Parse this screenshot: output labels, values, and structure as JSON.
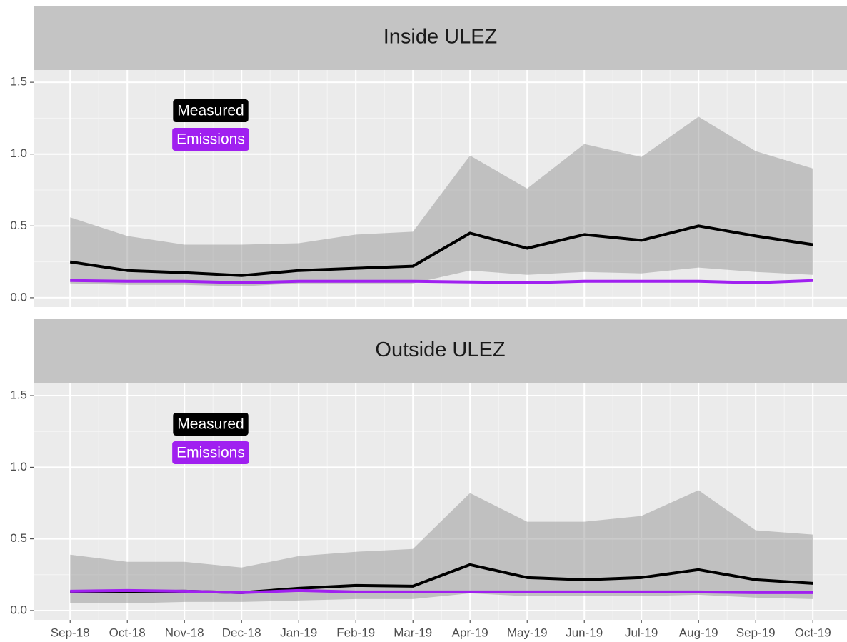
{
  "chart_data": [
    {
      "type": "line",
      "title": "Inside ULEZ",
      "ylim": [
        -0.065,
        1.585
      ],
      "yticks": [
        {
          "value": 0,
          "label": "0.0"
        },
        {
          "value": 0.5,
          "label": "0.5"
        },
        {
          "value": 1,
          "label": "1.0"
        },
        {
          "value": 1.5,
          "label": "1.5"
        }
      ],
      "grid": true,
      "series": [
        {
          "name": "Measured",
          "color": "#000000",
          "values": [
            0.25,
            0.19,
            0.175,
            0.155,
            0.19,
            0.205,
            0.22,
            0.45,
            0.345,
            0.44,
            0.4,
            0.5,
            0.43,
            0.37
          ],
          "upper": [
            0.56,
            0.43,
            0.37,
            0.37,
            0.38,
            0.44,
            0.46,
            0.99,
            0.76,
            1.07,
            0.98,
            1.26,
            1.02,
            0.9
          ],
          "lower": [
            0.1,
            0.09,
            0.09,
            0.08,
            0.1,
            0.1,
            0.1,
            0.19,
            0.16,
            0.18,
            0.17,
            0.21,
            0.18,
            0.16
          ]
        },
        {
          "name": "Emissions",
          "color": "#a020f0",
          "values": [
            0.12,
            0.115,
            0.115,
            0.105,
            0.115,
            0.115,
            0.115,
            0.11,
            0.105,
            0.115,
            0.115,
            0.115,
            0.105,
            0.12
          ]
        }
      ]
    },
    {
      "type": "line",
      "title": "Outside ULEZ",
      "categories": [
        "Sep-18",
        "Oct-18",
        "Nov-18",
        "Dec-18",
        "Jan-19",
        "Feb-19",
        "Mar-19",
        "Apr-19",
        "May-19",
        "Jun-19",
        "Jul-19",
        "Aug-19",
        "Sep-19",
        "Oct-19"
      ],
      "ylim": [
        -0.065,
        1.585
      ],
      "yticks": [
        {
          "value": 0,
          "label": "0.0"
        },
        {
          "value": 0.5,
          "label": "0.5"
        },
        {
          "value": 1,
          "label": "1.0"
        },
        {
          "value": 1.5,
          "label": "1.5"
        }
      ],
      "grid": true,
      "series": [
        {
          "name": "Measured",
          "color": "#000000",
          "values": [
            0.13,
            0.13,
            0.135,
            0.125,
            0.155,
            0.175,
            0.17,
            0.32,
            0.23,
            0.215,
            0.23,
            0.285,
            0.215,
            0.19
          ],
          "upper": [
            0.39,
            0.34,
            0.34,
            0.3,
            0.38,
            0.41,
            0.43,
            0.82,
            0.62,
            0.62,
            0.66,
            0.84,
            0.56,
            0.53
          ],
          "lower": [
            0.05,
            0.05,
            0.06,
            0.06,
            0.07,
            0.08,
            0.08,
            0.12,
            0.1,
            0.1,
            0.1,
            0.11,
            0.09,
            0.08
          ]
        },
        {
          "name": "Emissions",
          "color": "#a020f0",
          "values": [
            0.135,
            0.14,
            0.135,
            0.125,
            0.14,
            0.13,
            0.13,
            0.13,
            0.13,
            0.13,
            0.13,
            0.13,
            0.125,
            0.125
          ]
        }
      ]
    }
  ]
}
